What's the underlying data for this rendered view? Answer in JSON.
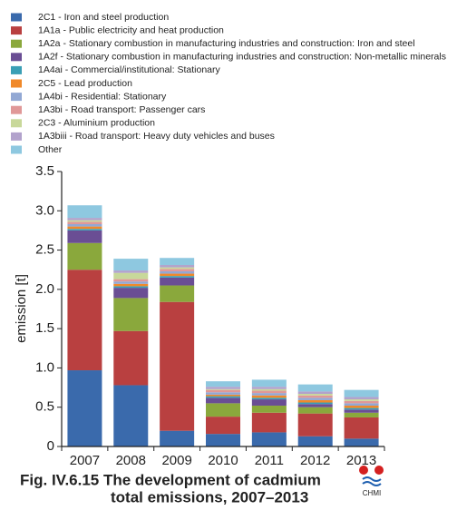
{
  "chart_data": {
    "type": "stacked-bar",
    "caption": [
      "Fig. IV.6.15  The development of cadmium",
      "total emissions, 2007–2013"
    ],
    "logo_text": "CHMI",
    "y_label": "emission [t]",
    "categories": [
      "2007",
      "2008",
      "2009",
      "2010",
      "2011",
      "2012",
      "2013"
    ],
    "ylim": [
      0,
      3.5
    ],
    "yticks": [
      0,
      0.5,
      {
        "value": 1,
        "label": "1.0"
      },
      1.5,
      {
        "value": 2,
        "label": "2.0"
      },
      2.5,
      {
        "value": 3,
        "label": "3.0"
      },
      3.5
    ],
    "series": [
      {
        "name": "2C1 - Iron and steel production",
        "color": "#3a6aac",
        "values": [
          0.97,
          0.78,
          0.2,
          0.16,
          0.18,
          0.13,
          0.1
        ]
      },
      {
        "name": "1A1a - Public electricity and heat production",
        "color": "#b94040",
        "values": [
          1.28,
          0.69,
          1.64,
          0.22,
          0.25,
          0.29,
          0.27
        ]
      },
      {
        "name": "1A2a - Stationary combustion in manufacturing industries and construction: Iron and steel",
        "color": "#8aa83c",
        "values": [
          0.34,
          0.42,
          0.21,
          0.17,
          0.09,
          0.08,
          0.06
        ]
      },
      {
        "name": "1A2f - Stationary combustion in manufacturing industries and construction: Non-metallic minerals",
        "color": "#6a4e94",
        "values": [
          0.16,
          0.13,
          0.1,
          0.07,
          0.08,
          0.04,
          0.04
        ]
      },
      {
        "name": "1A4ai - Commercial/institutional: Stationary",
        "color": "#3a9fb5",
        "values": [
          0.02,
          0.02,
          0.02,
          0.02,
          0.02,
          0.02,
          0.02
        ]
      },
      {
        "name": "2C5 - Lead production",
        "color": "#f0892a",
        "values": [
          0.03,
          0.03,
          0.03,
          0.02,
          0.03,
          0.03,
          0.03
        ]
      },
      {
        "name": "1A4bi - Residential: Stationary",
        "color": "#92a8d4",
        "values": [
          0.03,
          0.03,
          0.03,
          0.03,
          0.03,
          0.03,
          0.03
        ]
      },
      {
        "name": "1A3bi - Road transport: Passenger cars",
        "color": "#e09898",
        "values": [
          0.03,
          0.03,
          0.03,
          0.03,
          0.03,
          0.03,
          0.03
        ]
      },
      {
        "name": "2C3 - Aluminium production",
        "color": "#c8d89a",
        "values": [
          0.02,
          0.08,
          0.02,
          0.01,
          0.02,
          0.02,
          0.02
        ]
      },
      {
        "name": "1A3biii - Road transport: Heavy duty vehicles and buses",
        "color": "#b2a2cc",
        "values": [
          0.03,
          0.03,
          0.03,
          0.03,
          0.03,
          0.03,
          0.03
        ]
      },
      {
        "name": "Other",
        "color": "#8ec8e0",
        "values": [
          0.16,
          0.15,
          0.09,
          0.07,
          0.09,
          0.09,
          0.09
        ]
      }
    ]
  }
}
